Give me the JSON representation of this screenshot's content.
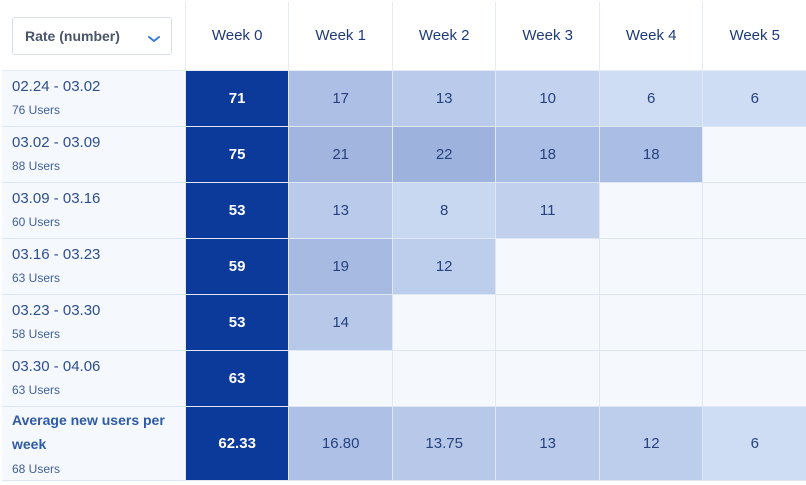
{
  "colors": {
    "week0": "#0b3a9a",
    "empty": "#f5f9fd",
    "text_dark": "#26427e",
    "text_light": "#ffffff"
  },
  "rate_select": {
    "value": "Rate (number)",
    "icon": "chevron-down-icon"
  },
  "weeks": [
    "Week 0",
    "Week 1",
    "Week 2",
    "Week 3",
    "Week 4",
    "Week 5"
  ],
  "cohorts": [
    {
      "range": "02.24 - 03.02",
      "users": "76 Users",
      "values": [
        "71",
        "17",
        "13",
        "10",
        "6",
        "6"
      ]
    },
    {
      "range": "03.02 - 03.09",
      "users": "88 Users",
      "values": [
        "75",
        "21",
        "22",
        "18",
        "18",
        ""
      ]
    },
    {
      "range": "03.09 - 03.16",
      "users": "60 Users",
      "values": [
        "53",
        "13",
        "8",
        "11",
        "",
        ""
      ]
    },
    {
      "range": "03.16 - 03.23",
      "users": "63 Users",
      "values": [
        "59",
        "19",
        "12",
        "",
        "",
        ""
      ]
    },
    {
      "range": "03.23 - 03.30",
      "users": "58 Users",
      "values": [
        "53",
        "14",
        "",
        "",
        "",
        ""
      ]
    },
    {
      "range": "03.30 - 04.06",
      "users": "63 Users",
      "values": [
        "63",
        "",
        "",
        "",
        "",
        ""
      ]
    }
  ],
  "average": {
    "title": "Average new users per week",
    "users": "68 Users",
    "values": [
      "62.33",
      "16.80",
      "13.75",
      "13",
      "12",
      "6"
    ]
  }
}
